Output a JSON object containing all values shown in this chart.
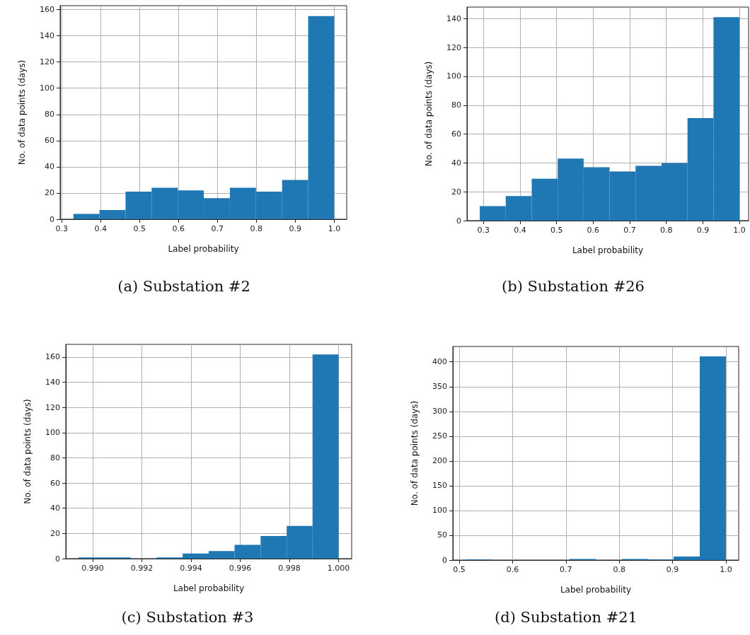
{
  "chart_data": [
    {
      "type": "histogram",
      "title": "(a) Substation #2",
      "xlabel": "Label probability",
      "ylabel": "No. of data points (days)",
      "color": "#1f77b4",
      "bins": [
        0.33,
        0.397,
        0.464,
        0.531,
        0.598,
        0.665,
        0.732,
        0.799,
        0.866,
        0.933,
        1.0
      ],
      "values": [
        4,
        7,
        21,
        24,
        22,
        16,
        24,
        21,
        30,
        155
      ],
      "xlim": [
        0.296,
        1.032
      ],
      "xticks": [
        0.3,
        0.4,
        0.5,
        0.6,
        0.7,
        0.8,
        0.9,
        {
          "value": 1,
          "label": "1.0"
        }
      ],
      "ylim": [
        0,
        163
      ],
      "yticks": [
        0,
        20,
        40,
        60,
        80,
        100,
        120,
        140,
        160
      ],
      "grid": true
    },
    {
      "type": "histogram",
      "title": "(b) Substation #26",
      "xlabel": "Label probability",
      "ylabel": "No. of data points (days)",
      "color": "#1f77b4",
      "bins": [
        0.29,
        0.361,
        0.432,
        0.503,
        0.574,
        0.645,
        0.716,
        0.787,
        0.858,
        0.929,
        1.0
      ],
      "values": [
        10,
        17,
        29,
        43,
        37,
        34,
        38,
        40,
        71,
        141
      ],
      "xlim": [
        0.255,
        1.025
      ],
      "xticks": [
        0.3,
        0.4,
        0.5,
        0.6,
        0.7,
        0.8,
        0.9,
        {
          "value": 1,
          "label": "1.0"
        }
      ],
      "ylim": [
        0,
        148
      ],
      "yticks": [
        0,
        20,
        40,
        60,
        80,
        100,
        120,
        140
      ],
      "grid": true
    },
    {
      "type": "histogram",
      "title": "(c) Substation #3",
      "xlabel": "Label probability",
      "ylabel": "No. of data points (days)",
      "color": "#1f77b4",
      "bins": [
        0.98943,
        0.99049,
        0.99155,
        0.9926,
        0.99366,
        0.99472,
        0.99577,
        0.99683,
        0.99789,
        0.99894,
        1.0
      ],
      "values": [
        1,
        1,
        0,
        1,
        4,
        6,
        11,
        18,
        26,
        162
      ],
      "xlim": [
        0.98891,
        1.00053
      ],
      "xticks": [
        {
          "value": 0.99,
          "label": "0.990"
        },
        {
          "value": 0.992,
          "label": "0.992"
        },
        {
          "value": 0.994,
          "label": "0.994"
        },
        {
          "value": 0.996,
          "label": "0.996"
        },
        {
          "value": 0.998,
          "label": "0.998"
        },
        {
          "value": 1,
          "label": "1.000"
        }
      ],
      "ylim": [
        0,
        170
      ],
      "yticks": [
        0,
        20,
        40,
        60,
        80,
        100,
        120,
        140,
        160
      ],
      "grid": true
    },
    {
      "type": "histogram",
      "title": "(d) Substation #21",
      "xlabel": "Label probability",
      "ylabel": "No. of data points (days)",
      "color": "#1f77b4",
      "bins": [
        0.512,
        0.561,
        0.707,
        0.756,
        0.805,
        0.854,
        0.902,
        0.951,
        1.0
      ],
      "values": [
        1,
        0,
        2,
        0,
        2,
        1,
        7,
        411
      ],
      "xlim": [
        0.488,
        1.024
      ],
      "xticks": [
        0.5,
        0.6,
        0.7,
        0.8,
        0.9,
        {
          "value": 1,
          "label": "1.0"
        }
      ],
      "ylim": [
        0,
        431
      ],
      "yticks": [
        0,
        50,
        100,
        150,
        200,
        250,
        300,
        350,
        400
      ],
      "grid": true
    }
  ]
}
